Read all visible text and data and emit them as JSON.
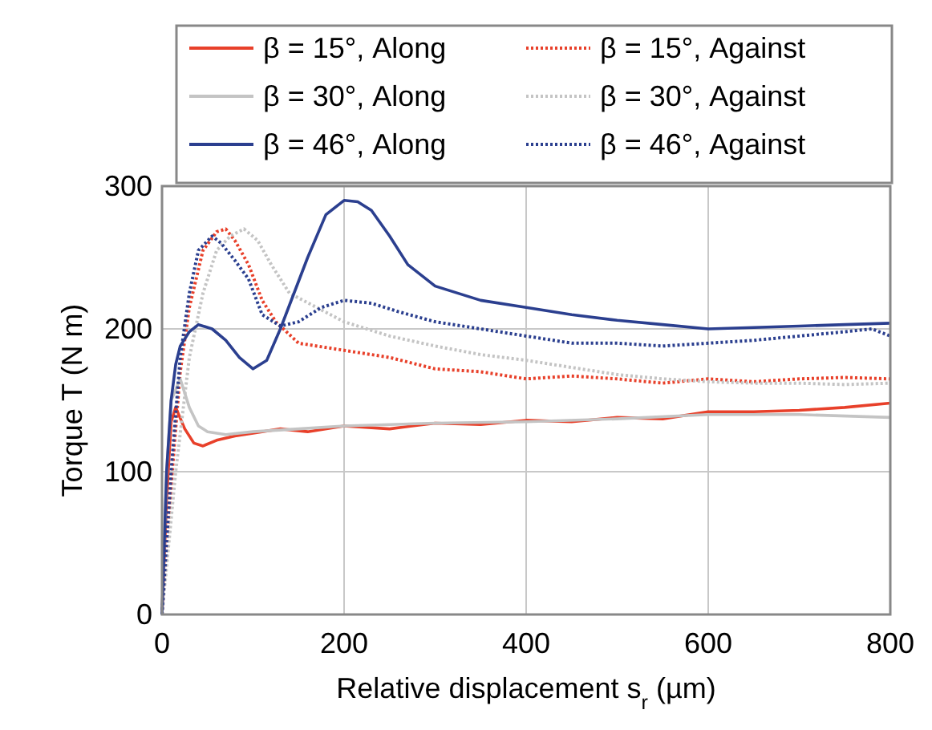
{
  "chart_data": {
    "type": "line",
    "xlabel": "Relative displacement s$_{r}$ (µm)",
    "ylabel": "Torque T (N m)",
    "xlim": [
      0,
      800
    ],
    "ylim": [
      0,
      300
    ],
    "xticks": [
      0,
      200,
      400,
      600,
      800
    ],
    "yticks": [
      0,
      100,
      200,
      300
    ],
    "grid": true,
    "legend": "top",
    "series": [
      {
        "name": "β = 15°, Along",
        "color": "#e8402a",
        "line_style": "solid",
        "x": [
          0,
          5,
          10,
          15,
          25,
          35,
          45,
          60,
          80,
          100,
          130,
          160,
          200,
          250,
          300,
          350,
          400,
          450,
          500,
          550,
          600,
          650,
          700,
          750,
          800
        ],
        "values": [
          0,
          80,
          135,
          145,
          130,
          120,
          118,
          122,
          125,
          127,
          130,
          128,
          132,
          130,
          134,
          133,
          136,
          135,
          138,
          137,
          142,
          142,
          143,
          145,
          148
        ]
      },
      {
        "name": "β = 15°, Against",
        "color": "#e8402a",
        "line_style": "dotted",
        "x": [
          0,
          10,
          20,
          30,
          45,
          60,
          70,
          80,
          95,
          110,
          125,
          150,
          200,
          250,
          300,
          350,
          400,
          450,
          500,
          550,
          600,
          650,
          700,
          750,
          800
        ],
        "values": [
          0,
          90,
          170,
          215,
          255,
          268,
          270,
          262,
          245,
          220,
          205,
          190,
          185,
          180,
          172,
          170,
          165,
          167,
          165,
          162,
          165,
          163,
          165,
          166,
          165
        ]
      },
      {
        "name": "β = 30°, Along",
        "color": "#c4c4c4",
        "line_style": "solid",
        "x": [
          0,
          5,
          10,
          20,
          30,
          40,
          50,
          70,
          100,
          150,
          200,
          250,
          300,
          400,
          500,
          600,
          700,
          800
        ],
        "values": [
          0,
          100,
          150,
          165,
          145,
          132,
          128,
          126,
          128,
          130,
          132,
          133,
          134,
          135,
          137,
          140,
          140,
          138
        ]
      },
      {
        "name": "β = 30°, Against",
        "color": "#c4c4c4",
        "line_style": "dotted",
        "x": [
          0,
          15,
          30,
          45,
          60,
          75,
          90,
          105,
          120,
          140,
          170,
          200,
          250,
          300,
          350,
          400,
          450,
          500,
          550,
          600,
          650,
          700,
          750,
          800
        ],
        "values": [
          0,
          100,
          180,
          225,
          255,
          265,
          270,
          262,
          245,
          225,
          215,
          205,
          195,
          188,
          182,
          178,
          173,
          168,
          165,
          163,
          162,
          162,
          161,
          162
        ]
      },
      {
        "name": "β = 46°, Along",
        "color": "#2b3f8f",
        "line_style": "solid",
        "x": [
          0,
          5,
          10,
          15,
          20,
          30,
          40,
          55,
          70,
          85,
          100,
          115,
          130,
          145,
          160,
          180,
          200,
          215,
          230,
          250,
          270,
          300,
          350,
          400,
          450,
          500,
          550,
          600,
          650,
          700,
          750,
          800
        ],
        "values": [
          0,
          100,
          150,
          175,
          188,
          198,
          203,
          200,
          192,
          180,
          172,
          178,
          200,
          225,
          250,
          280,
          290,
          289,
          283,
          265,
          245,
          230,
          220,
          215,
          210,
          206,
          203,
          200,
          201,
          202,
          203,
          204
        ]
      },
      {
        "name": "β = 46°, Against",
        "color": "#2b3f8f",
        "line_style": "dotted",
        "x": [
          0,
          10,
          20,
          30,
          40,
          55,
          65,
          80,
          95,
          110,
          130,
          150,
          175,
          200,
          230,
          260,
          300,
          350,
          400,
          450,
          500,
          550,
          600,
          650,
          700,
          750,
          780,
          800
        ],
        "values": [
          0,
          100,
          180,
          225,
          255,
          265,
          260,
          248,
          235,
          210,
          202,
          205,
          215,
          220,
          218,
          212,
          205,
          200,
          195,
          190,
          190,
          188,
          190,
          192,
          195,
          198,
          200,
          195
        ]
      }
    ]
  }
}
